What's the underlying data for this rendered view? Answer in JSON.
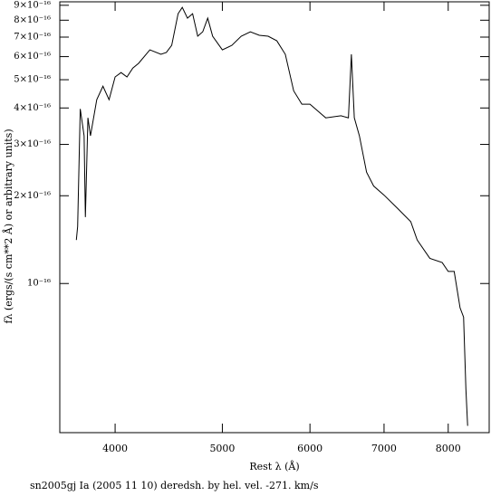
{
  "chart_data": {
    "type": "line",
    "x_label": "Rest λ (Å)",
    "y_label": "fλ (ergs/(s cm**2 Å) or arbitrary units)",
    "caption": "sn2005gj Ia (2005 11 10) deredsh. by hel. vel.  -271. km/s",
    "x_scale": "log",
    "y_scale": "log",
    "xlim": [
      3565,
      8712
    ],
    "ylim": [
      3.08e-17,
      9.25e-16
    ],
    "xticks": [
      4000,
      5000,
      6000,
      7000,
      8000
    ],
    "yticks": [
      {
        "value": 1e-16,
        "label": "10⁻¹⁶"
      },
      {
        "value": 2e-16,
        "label": "2×10⁻¹⁶"
      },
      {
        "value": 3e-16,
        "label": "3×10⁻¹⁶"
      },
      {
        "value": 4e-16,
        "label": "4×10⁻¹⁶"
      },
      {
        "value": 5e-16,
        "label": "5×10⁻¹⁶"
      },
      {
        "value": 6e-16,
        "label": "6×10⁻¹⁶"
      },
      {
        "value": 7e-16,
        "label": "7×10⁻¹⁶"
      },
      {
        "value": 8e-16,
        "label": "8×10⁻¹⁶"
      },
      {
        "value": 9e-16,
        "label": "9×10⁻¹⁶"
      }
    ],
    "x": [
      3690,
      3700,
      3720,
      3750,
      3760,
      3780,
      3800,
      3850,
      3900,
      3950,
      4000,
      4050,
      4100,
      4150,
      4200,
      4300,
      4400,
      4450,
      4500,
      4560,
      4600,
      4650,
      4700,
      4750,
      4800,
      4850,
      4900,
      5000,
      5100,
      5200,
      5300,
      5400,
      5500,
      5600,
      5700,
      5800,
      5900,
      6000,
      6200,
      6400,
      6500,
      6540,
      6580,
      6650,
      6750,
      6850,
      7000,
      7200,
      7400,
      7500,
      7700,
      7900,
      8000,
      8100,
      8200,
      8260,
      8300,
      8330
    ],
    "series": [
      {
        "color": "#000000",
        "values": [
          1.41e-16,
          1.57e-16,
          3.97e-16,
          3.21e-16,
          1.69e-16,
          3.7e-16,
          3.21e-16,
          4.27e-16,
          4.75e-16,
          4.27e-16,
          5.11e-16,
          5.29e-16,
          5.11e-16,
          5.48e-16,
          5.69e-16,
          6.33e-16,
          6.11e-16,
          6.2e-16,
          6.56e-16,
          8.42e-16,
          8.85e-16,
          8.13e-16,
          8.42e-16,
          7.05e-16,
          7.3e-16,
          8.13e-16,
          7.05e-16,
          6.33e-16,
          6.56e-16,
          7.05e-16,
          7.3e-16,
          7.1e-16,
          7.05e-16,
          6.8e-16,
          6.11e-16,
          4.58e-16,
          4.12e-16,
          4.12e-16,
          3.7e-16,
          3.76e-16,
          3.7e-16,
          6.11e-16,
          3.7e-16,
          3.21e-16,
          2.41e-16,
          2.16e-16,
          2.01e-16,
          1.81e-16,
          1.63e-16,
          1.41e-16,
          1.22e-16,
          1.18e-16,
          1.1e-16,
          1.1e-16,
          8.25e-17,
          7.67e-17,
          4.34e-17,
          3.25e-17
        ]
      }
    ]
  }
}
